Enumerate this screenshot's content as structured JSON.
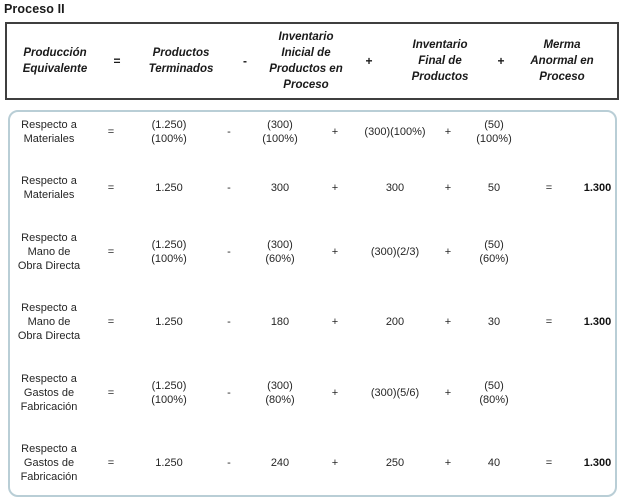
{
  "title": "Proceso II",
  "colors": {
    "header_border": "#3f3f3f",
    "body_border": "#b9ced6",
    "text": "#262626"
  },
  "formula_header": {
    "produccion_equivalente": "Producción\nEquivalente",
    "eq": "=",
    "productos_terminados": "Productos\nTerminados",
    "minus": "-",
    "inventario_inicial": "Inventario\nInicial de\nProductos en\nProceso",
    "plus1": "+",
    "inventario_final": "Inventario\nFinal de\nProductos",
    "plus2": "+",
    "merma_anormal": "Merma\nAnormal en\nProceso"
  },
  "rows": [
    {
      "label": "Respecto a\nMateriales",
      "eq": "=",
      "v1": "(1.250)(100%)",
      "op1": "-",
      "v2": "(300)(100%)",
      "op2": "+",
      "v3": "(300)(100%)",
      "op3": "+",
      "v4": "(50)(100%)",
      "eq2": "",
      "result": ""
    },
    {
      "label": "Respecto a\nMateriales",
      "eq": "=",
      "v1": "1.250",
      "op1": "-",
      "v2": "300",
      "op2": "+",
      "v3": "300",
      "op3": "+",
      "v4": "50",
      "eq2": "=",
      "result": "1.300"
    },
    {
      "label": "Respecto a\nMano de\nObra Directa",
      "eq": "=",
      "v1": "(1.250)(100%)",
      "op1": "-",
      "v2": "(300)(60%)",
      "op2": "+",
      "v3": "(300)(2/3)",
      "op3": "+",
      "v4": "(50)(60%)",
      "eq2": "",
      "result": ""
    },
    {
      "label": "Respecto a\nMano de\nObra Directa",
      "eq": "=",
      "v1": "1.250",
      "op1": "-",
      "v2": "180",
      "op2": "+",
      "v3": "200",
      "op3": "+",
      "v4": "30",
      "eq2": "=",
      "result": "1.300"
    },
    {
      "label": "Respecto a\nGastos de\nFabricación",
      "eq": "=",
      "v1": "(1.250)(100%)",
      "op1": "-",
      "v2": "(300)(80%)",
      "op2": "+",
      "v3": "(300)(5/6)",
      "op3": "+",
      "v4": "(50)(80%)",
      "eq2": "",
      "result": ""
    },
    {
      "label": "Respecto a\nGastos de\nFabricación",
      "eq": "=",
      "v1": "1.250",
      "op1": "-",
      "v2": "240",
      "op2": "+",
      "v3": "250",
      "op3": "+",
      "v4": "40",
      "eq2": "=",
      "result": "1.300"
    }
  ]
}
